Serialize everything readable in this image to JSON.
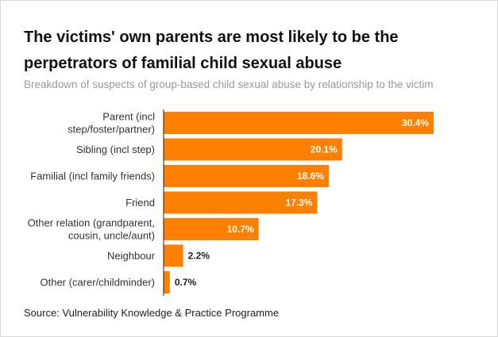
{
  "header": {
    "title": "The victims' own parents are most likely to be the perpetrators of familial child sexual abuse",
    "subtitle": "Breakdown of suspects of group-based child sexual abuse by relationship to the victim"
  },
  "footer": {
    "source": "Source: Vulnerability Knowledge & Practice Programme"
  },
  "colors": {
    "bar": "#ff7f00",
    "axis": "#222222"
  },
  "chart_data": {
    "type": "bar",
    "orientation": "horizontal",
    "title": "The victims' own parents are most likely to be the perpetrators of familial child sexual abuse",
    "subtitle": "Breakdown of suspects of group-based child sexual abuse by relationship to the victim",
    "categories": [
      [
        "Parent (incl",
        "step/foster/partner)"
      ],
      [
        "Sibling (incl step)"
      ],
      [
        "Familial (incl family friends)"
      ],
      [
        "Friend"
      ],
      [
        "Other relation (grandparent,",
        "cousin, uncle/aunt)"
      ],
      [
        "Neighbour"
      ],
      [
        "Other (carer/childminder)"
      ]
    ],
    "values": [
      30.4,
      20.1,
      18.6,
      17.3,
      10.7,
      2.2,
      0.7
    ],
    "value_labels": [
      "30.4%",
      "20.1%",
      "18.6%",
      "17.3%",
      "10.7%",
      "2.2%",
      "0.7%"
    ],
    "unit": "%",
    "xlim": [
      0,
      30.4
    ],
    "grid": false,
    "legend": "none"
  }
}
